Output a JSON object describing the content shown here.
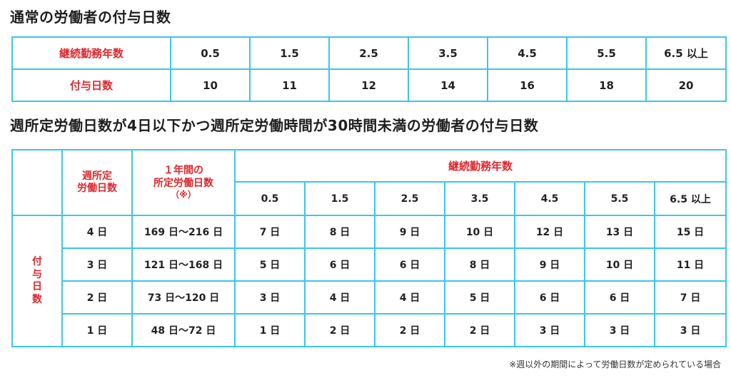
{
  "table1": {
    "title": "通常の労働者の付与日数",
    "row1_label": "継続勤務年数",
    "row2_label": "付与日数",
    "years": [
      "0.5",
      "1.5",
      "2.5",
      "3.5",
      "4.5",
      "5.5",
      "6.5 以上"
    ],
    "days": [
      "10",
      "11",
      "12",
      "14",
      "16",
      "18",
      "20"
    ]
  },
  "table2": {
    "title": "週所定労働日数が4日以下かつ週所定労働時間が30時間未満の労働者の付与日数",
    "col_weekly_line1": "週所定",
    "col_weekly_line2": "労働日数",
    "col_annual_line1": "１年間の",
    "col_annual_line2": "所定労働日数",
    "col_annual_note": "（※）",
    "years_header": "継続勤務年数",
    "row_group_label": [
      "付",
      "与",
      "日",
      "数"
    ],
    "years": [
      "0.5",
      "1.5",
      "2.5",
      "3.5",
      "4.5",
      "5.5",
      "6.5 以上"
    ],
    "rows": [
      {
        "weekly": "4 日",
        "annual": "169 日～216 日",
        "days": [
          "7 日",
          "8 日",
          "9 日",
          "10 日",
          "12 日",
          "13 日",
          "15 日"
        ]
      },
      {
        "weekly": "3 日",
        "annual": "121 日～168 日",
        "days": [
          "5 日",
          "6 日",
          "6 日",
          "8 日",
          "9 日",
          "10 日",
          "11 日"
        ]
      },
      {
        "weekly": "2 日",
        "annual": "73 日～120 日",
        "days": [
          "3 日",
          "4 日",
          "4 日",
          "5 日",
          "6 日",
          "6 日",
          "7 日"
        ]
      },
      {
        "weekly": "1 日",
        "annual": "48 日～72 日",
        "days": [
          "1 日",
          "2 日",
          "2 日",
          "2 日",
          "3 日",
          "3 日",
          "3 日"
        ]
      }
    ],
    "footnote": "※週以外の期間によって労働日数が定められている場合"
  },
  "colors": {
    "border": "#3cc5ec",
    "label_red": "#e0262c"
  }
}
